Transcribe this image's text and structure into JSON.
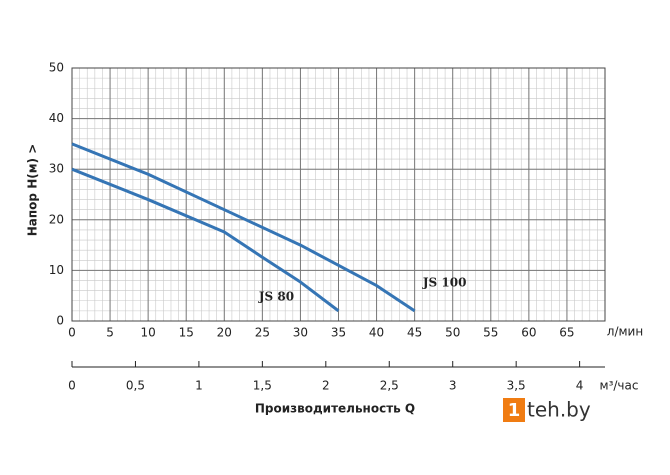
{
  "chart_data": {
    "type": "line",
    "y_label": "Напор   H(м)  >",
    "x_unit": "л/мин",
    "x2_unit": "м³/час",
    "x2_label": "Производительность Q",
    "xlim": [
      0,
      70
    ],
    "xticks": [
      0,
      5,
      10,
      15,
      20,
      25,
      30,
      35,
      40,
      45,
      50,
      55,
      60,
      65
    ],
    "ylim": [
      0,
      50
    ],
    "yticks": [
      0,
      10,
      20,
      30,
      40,
      50
    ],
    "x2lim": [
      0,
      4.2
    ],
    "x2ticks": [
      0,
      {
        "value": 0.5,
        "label": "0,5"
      },
      1,
      {
        "value": 1.5,
        "label": "1,5"
      },
      2,
      {
        "value": 2.5,
        "label": "2,5"
      },
      3,
      {
        "value": 3.5,
        "label": "3,5"
      },
      4
    ],
    "grid": true,
    "x_minor_step": 1,
    "y_minor_step": 2,
    "series": [
      {
        "name": "JS 100",
        "color": "#3575b5",
        "x": [
          0,
          10,
          20,
          30,
          40,
          45
        ],
        "values": [
          35,
          29,
          22,
          15,
          7,
          2
        ]
      },
      {
        "name": "JS 80",
        "color": "#3575b5",
        "x": [
          0,
          10,
          20,
          25,
          30,
          35
        ],
        "values": [
          30,
          24,
          17.6,
          12.6,
          7.7,
          2
        ]
      }
    ],
    "watermark": {
      "badge": "1",
      "text": "teh.by"
    }
  }
}
